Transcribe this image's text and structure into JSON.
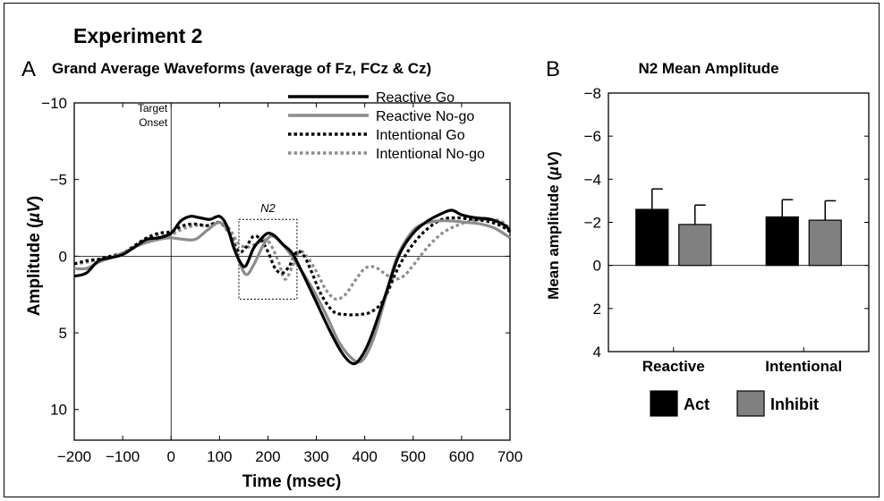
{
  "figure": {
    "title": "Experiment 2"
  },
  "chart_data": [
    {
      "panel_letter": "A",
      "type": "line",
      "title": "Grand Average Waveforms (average of Fz, FCz & Cz)",
      "xlabel": "Time (msec)",
      "ylabel": "Amplitude (µV)",
      "xlim": [
        -200,
        700
      ],
      "ylim": [
        -10,
        12
      ],
      "y_inverted": true,
      "grid": false,
      "legend_position": "top-right",
      "xticks": [
        -200,
        -100,
        0,
        100,
        200,
        300,
        400,
        500,
        600,
        700
      ],
      "yticks": [
        -10,
        -5,
        0,
        5,
        10
      ],
      "annotations": {
        "onset_line1": "Target",
        "onset_line2": "Onset",
        "n2_label": "N2",
        "n2_window": [
          140,
          260
        ]
      },
      "colors": {
        "black": "#000000",
        "gray": "#8c8c8c"
      },
      "series": [
        {
          "name": "Reactive Go",
          "color": "#000000",
          "dashed": false,
          "points": [
            [
              -200,
              1.3
            ],
            [
              -175,
              1.1
            ],
            [
              -150,
              0.3
            ],
            [
              -125,
              0.1
            ],
            [
              -100,
              -0.1
            ],
            [
              -75,
              -0.6
            ],
            [
              -50,
              -1.1
            ],
            [
              -25,
              -1.2
            ],
            [
              0,
              -1.5
            ],
            [
              20,
              -2.3
            ],
            [
              40,
              -2.6
            ],
            [
              60,
              -2.5
            ],
            [
              80,
              -2.4
            ],
            [
              100,
              -2.6
            ],
            [
              115,
              -2.0
            ],
            [
              130,
              -0.5
            ],
            [
              145,
              0.5
            ],
            [
              155,
              0.6
            ],
            [
              170,
              -0.5
            ],
            [
              185,
              -1.1
            ],
            [
              200,
              -1.5
            ],
            [
              215,
              -1.3
            ],
            [
              230,
              -0.8
            ],
            [
              250,
              -0.2
            ],
            [
              270,
              1.0
            ],
            [
              300,
              3.0
            ],
            [
              330,
              5.0
            ],
            [
              355,
              6.4
            ],
            [
              375,
              7.0
            ],
            [
              390,
              6.7
            ],
            [
              410,
              5.5
            ],
            [
              440,
              2.8
            ],
            [
              470,
              0.0
            ],
            [
              500,
              -1.5
            ],
            [
              530,
              -2.3
            ],
            [
              560,
              -2.8
            ],
            [
              580,
              -3.0
            ],
            [
              600,
              -2.7
            ],
            [
              630,
              -2.5
            ],
            [
              660,
              -2.4
            ],
            [
              690,
              -2.0
            ],
            [
              700,
              -1.6
            ]
          ]
        },
        {
          "name": "Reactive No-go",
          "color": "#8c8c8c",
          "dashed": false,
          "points": [
            [
              -200,
              0.8
            ],
            [
              -175,
              0.8
            ],
            [
              -150,
              0.4
            ],
            [
              -125,
              0.1
            ],
            [
              -100,
              -0.2
            ],
            [
              -75,
              -0.6
            ],
            [
              -50,
              -0.9
            ],
            [
              -25,
              -1.1
            ],
            [
              0,
              -1.2
            ],
            [
              25,
              -1.1
            ],
            [
              50,
              -1.1
            ],
            [
              75,
              -1.7
            ],
            [
              100,
              -2.2
            ],
            [
              120,
              -1.5
            ],
            [
              140,
              0.3
            ],
            [
              155,
              1.2
            ],
            [
              170,
              0.6
            ],
            [
              190,
              -0.7
            ],
            [
              205,
              -1.3
            ],
            [
              220,
              -1.1
            ],
            [
              240,
              -0.4
            ],
            [
              260,
              0.5
            ],
            [
              290,
              2.0
            ],
            [
              320,
              3.8
            ],
            [
              345,
              5.5
            ],
            [
              365,
              6.4
            ],
            [
              385,
              6.9
            ],
            [
              400,
              6.6
            ],
            [
              420,
              5.2
            ],
            [
              440,
              3.0
            ],
            [
              465,
              0.2
            ],
            [
              495,
              -1.5
            ],
            [
              520,
              -2.1
            ],
            [
              550,
              -2.3
            ],
            [
              580,
              -2.3
            ],
            [
              610,
              -2.2
            ],
            [
              640,
              -2.1
            ],
            [
              670,
              -1.8
            ],
            [
              700,
              -1.2
            ]
          ]
        },
        {
          "name": "Intentional Go",
          "color": "#000000",
          "dashed": true,
          "points": [
            [
              -200,
              0.5
            ],
            [
              -175,
              0.3
            ],
            [
              -150,
              0.2
            ],
            [
              -125,
              0.0
            ],
            [
              -100,
              -0.2
            ],
            [
              -75,
              -0.7
            ],
            [
              -50,
              -1.2
            ],
            [
              -25,
              -1.5
            ],
            [
              0,
              -1.6
            ],
            [
              25,
              -2.0
            ],
            [
              50,
              -2.1
            ],
            [
              75,
              -2.0
            ],
            [
              100,
              -2.2
            ],
            [
              120,
              -1.5
            ],
            [
              140,
              -0.3
            ],
            [
              155,
              -0.6
            ],
            [
              170,
              -1.3
            ],
            [
              185,
              -1.1
            ],
            [
              200,
              -0.3
            ],
            [
              215,
              0.8
            ],
            [
              230,
              1.1
            ],
            [
              245,
              0.6
            ],
            [
              260,
              -0.3
            ],
            [
              275,
              0.0
            ],
            [
              290,
              1.0
            ],
            [
              310,
              2.5
            ],
            [
              335,
              3.6
            ],
            [
              360,
              3.8
            ],
            [
              390,
              3.8
            ],
            [
              415,
              3.6
            ],
            [
              440,
              2.8
            ],
            [
              470,
              0.7
            ],
            [
              500,
              -0.8
            ],
            [
              530,
              -1.8
            ],
            [
              560,
              -2.4
            ],
            [
              590,
              -2.5
            ],
            [
              620,
              -2.4
            ],
            [
              650,
              -2.3
            ],
            [
              680,
              -2.0
            ],
            [
              700,
              -1.6
            ]
          ]
        },
        {
          "name": "Intentional No-go",
          "color": "#8c8c8c",
          "dashed": true,
          "points": [
            [
              -200,
              0.5
            ],
            [
              -175,
              0.4
            ],
            [
              -150,
              0.2
            ],
            [
              -125,
              0.0
            ],
            [
              -100,
              -0.2
            ],
            [
              -75,
              -0.6
            ],
            [
              -50,
              -1.1
            ],
            [
              -25,
              -1.3
            ],
            [
              0,
              -1.4
            ],
            [
              25,
              -1.8
            ],
            [
              50,
              -2.0
            ],
            [
              75,
              -2.0
            ],
            [
              100,
              -2.2
            ],
            [
              120,
              -1.8
            ],
            [
              140,
              -0.8
            ],
            [
              160,
              -0.6
            ],
            [
              180,
              -0.9
            ],
            [
              200,
              -1.0
            ],
            [
              220,
              0.2
            ],
            [
              235,
              1.5
            ],
            [
              250,
              0.7
            ],
            [
              265,
              -0.3
            ],
            [
              280,
              0.0
            ],
            [
              300,
              1.0
            ],
            [
              320,
              2.2
            ],
            [
              340,
              2.8
            ],
            [
              360,
              2.5
            ],
            [
              380,
              1.6
            ],
            [
              400,
              0.8
            ],
            [
              420,
              0.7
            ],
            [
              440,
              1.1
            ],
            [
              460,
              1.5
            ],
            [
              480,
              1.3
            ],
            [
              500,
              0.6
            ],
            [
              530,
              -0.6
            ],
            [
              560,
              -1.5
            ],
            [
              590,
              -2.0
            ],
            [
              620,
              -2.3
            ],
            [
              650,
              -2.4
            ],
            [
              680,
              -2.3
            ],
            [
              700,
              -1.8
            ]
          ]
        }
      ]
    },
    {
      "panel_letter": "B",
      "type": "bar",
      "title": "N2 Mean Amplitude",
      "xlabel": "",
      "ylabel": "Mean amplitude (µV)",
      "ylim": [
        -8,
        4
      ],
      "y_inverted": true,
      "yticks": [
        -8,
        -6,
        -4,
        -2,
        0,
        2,
        4
      ],
      "categories": [
        "Reactive",
        "Intentional"
      ],
      "grid": false,
      "legend_position": "bottom",
      "series": [
        {
          "name": "Act",
          "color": "#000000",
          "values": [
            -2.6,
            -2.25
          ],
          "error": [
            0.95,
            0.8
          ]
        },
        {
          "name": "Inhibit",
          "color": "#808080",
          "values": [
            -1.9,
            -2.1
          ],
          "error": [
            0.9,
            0.9
          ]
        }
      ]
    }
  ]
}
